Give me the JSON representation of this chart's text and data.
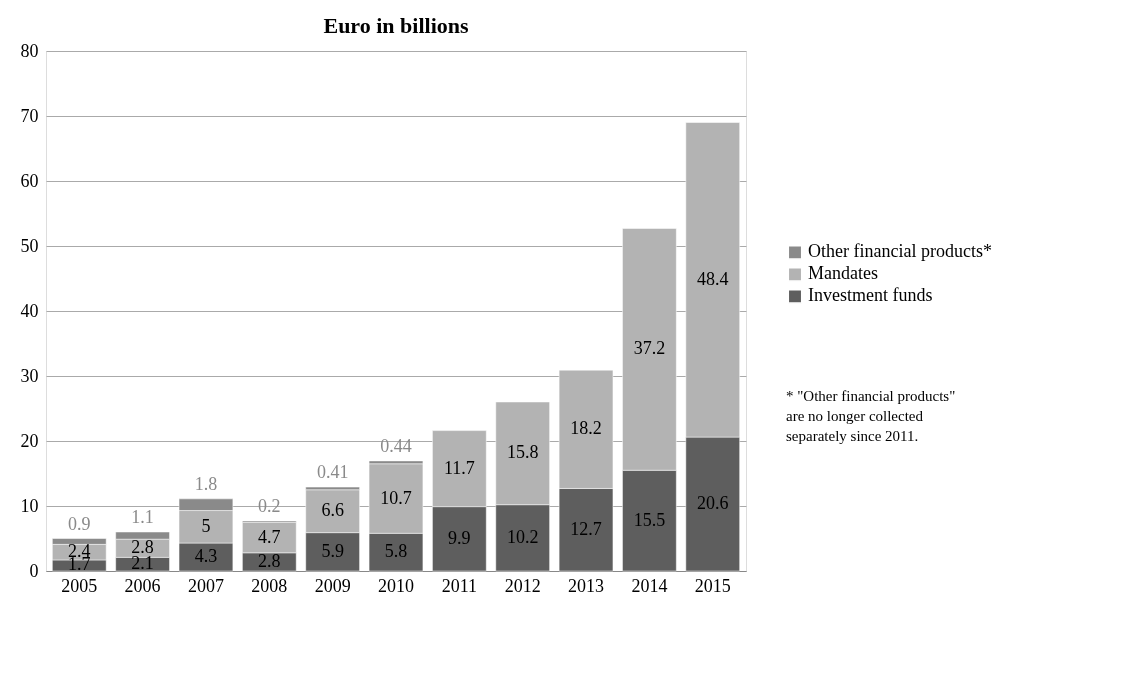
{
  "chart_data": {
    "type": "bar",
    "title": "Euro in billions",
    "stacked": true,
    "categories": [
      "2005",
      "2006",
      "2007",
      "2008",
      "2009",
      "2010",
      "2011",
      "2012",
      "2013",
      "2014",
      "2015"
    ],
    "series": [
      {
        "name": "Investment funds",
        "color": "#5e5e5e",
        "values": [
          1.7,
          2.1,
          4.3,
          2.8,
          5.9,
          5.8,
          9.9,
          10.2,
          12.7,
          15.5,
          20.6
        ]
      },
      {
        "name": "Mandates",
        "color": "#b3b3b3",
        "values": [
          2.4,
          2.8,
          5,
          4.7,
          6.6,
          10.7,
          11.7,
          15.8,
          18.2,
          37.2,
          48.4
        ]
      },
      {
        "name": "Other financial products*",
        "color": "#8a8a8a",
        "values": [
          0.9,
          1.1,
          1.8,
          0.2,
          0.41,
          0.44,
          null,
          null,
          null,
          null,
          null
        ]
      }
    ],
    "ylim": [
      0,
      80
    ],
    "yticks": [
      0,
      10,
      20,
      30,
      40,
      50,
      60,
      70,
      80
    ],
    "grid": "y",
    "legend": "right",
    "data_labels": true,
    "annotations": [
      "* \"Other financial products\" are no longer collected separately since 2011."
    ]
  }
}
